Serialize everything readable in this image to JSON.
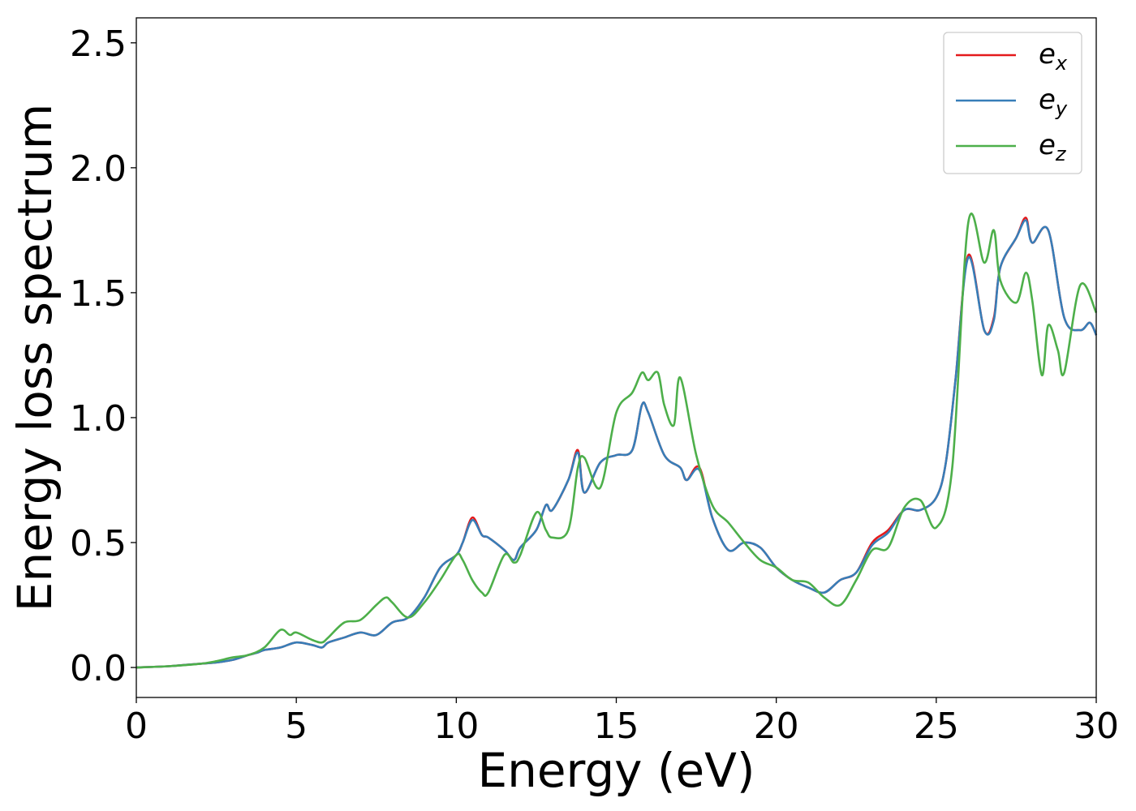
{
  "chart_data": {
    "type": "line",
    "title": "",
    "xlabel": "Energy (eV)",
    "ylabel": "Energy loss spectrum",
    "xlim": [
      0,
      30
    ],
    "ylim": [
      -0.12,
      2.6
    ],
    "xticks": [
      0,
      5,
      10,
      15,
      20,
      25,
      30
    ],
    "xtick_labels": [
      "0",
      "5",
      "10",
      "15",
      "20",
      "25",
      "30"
    ],
    "yticks": [
      0.0,
      0.5,
      1.0,
      1.5,
      2.0,
      2.5
    ],
    "ytick_labels": [
      "0.0",
      "0.5",
      "1.0",
      "1.5",
      "2.0",
      "2.5"
    ],
    "grid": false,
    "legend_position": "top-right",
    "series": [
      {
        "name": "e_x",
        "label_base": "e",
        "label_sub": "x",
        "color": "#e41a1c",
        "x": [
          0,
          1,
          1.5,
          2,
          2.5,
          3,
          3.5,
          3.8,
          4,
          4.5,
          5,
          5.5,
          5.8,
          6,
          6.5,
          7,
          7.5,
          8,
          8.5,
          9,
          9.5,
          10,
          10.2,
          10.5,
          10.8,
          11,
          11.5,
          11.8,
          12,
          12.5,
          12.8,
          13,
          13.5,
          13.8,
          14,
          14.5,
          15,
          15.5,
          15.8,
          16,
          16.5,
          17,
          17.2,
          17.6,
          18,
          18.5,
          19,
          19.5,
          20,
          20.5,
          21,
          21.5,
          22,
          22.5,
          23,
          23.5,
          24,
          24.5,
          25,
          25.3,
          25.6,
          26,
          26.5,
          26.8,
          27,
          27.5,
          27.8,
          28,
          28.5,
          29,
          29.5,
          29.8,
          30
        ],
        "y": [
          0.0,
          0.005,
          0.01,
          0.015,
          0.02,
          0.03,
          0.05,
          0.06,
          0.07,
          0.08,
          0.1,
          0.09,
          0.08,
          0.1,
          0.12,
          0.14,
          0.13,
          0.18,
          0.2,
          0.28,
          0.4,
          0.45,
          0.5,
          0.6,
          0.53,
          0.52,
          0.47,
          0.43,
          0.48,
          0.55,
          0.65,
          0.63,
          0.75,
          0.87,
          0.7,
          0.82,
          0.85,
          0.87,
          1.05,
          1.02,
          0.85,
          0.8,
          0.75,
          0.8,
          0.6,
          0.47,
          0.5,
          0.48,
          0.4,
          0.35,
          0.32,
          0.3,
          0.35,
          0.38,
          0.5,
          0.55,
          0.63,
          0.63,
          0.68,
          0.82,
          1.15,
          1.65,
          1.35,
          1.4,
          1.6,
          1.72,
          1.8,
          1.7,
          1.75,
          1.4,
          1.35,
          1.38,
          1.33
        ]
      },
      {
        "name": "e_y",
        "label_base": "e",
        "label_sub": "y",
        "color": "#377eb8",
        "x": [
          0,
          1,
          1.5,
          2,
          2.5,
          3,
          3.5,
          3.8,
          4,
          4.5,
          5,
          5.5,
          5.8,
          6,
          6.5,
          7,
          7.5,
          8,
          8.5,
          9,
          9.5,
          10,
          10.2,
          10.5,
          10.8,
          11,
          11.5,
          11.8,
          12,
          12.5,
          12.8,
          13,
          13.5,
          13.8,
          14,
          14.5,
          15,
          15.5,
          15.8,
          16,
          16.5,
          17,
          17.2,
          17.6,
          18,
          18.5,
          19,
          19.5,
          20,
          20.5,
          21,
          21.5,
          22,
          22.5,
          23,
          23.5,
          24,
          24.5,
          25,
          25.3,
          25.6,
          26,
          26.5,
          26.8,
          27,
          27.5,
          27.8,
          28,
          28.5,
          29,
          29.5,
          29.8,
          30
        ],
        "y": [
          0.0,
          0.005,
          0.01,
          0.015,
          0.02,
          0.03,
          0.05,
          0.06,
          0.07,
          0.08,
          0.1,
          0.09,
          0.08,
          0.1,
          0.12,
          0.14,
          0.13,
          0.18,
          0.2,
          0.28,
          0.4,
          0.45,
          0.5,
          0.59,
          0.53,
          0.52,
          0.47,
          0.43,
          0.48,
          0.55,
          0.65,
          0.63,
          0.75,
          0.86,
          0.7,
          0.82,
          0.85,
          0.87,
          1.05,
          1.02,
          0.85,
          0.8,
          0.75,
          0.79,
          0.6,
          0.47,
          0.5,
          0.48,
          0.4,
          0.35,
          0.32,
          0.3,
          0.35,
          0.38,
          0.49,
          0.54,
          0.63,
          0.63,
          0.68,
          0.82,
          1.15,
          1.64,
          1.35,
          1.39,
          1.6,
          1.72,
          1.79,
          1.7,
          1.75,
          1.4,
          1.35,
          1.38,
          1.33
        ]
      },
      {
        "name": "e_z",
        "label_base": "e",
        "label_sub": "z",
        "color": "#4daf4a",
        "x": [
          0,
          1,
          2,
          2.5,
          3,
          3.5,
          4,
          4.5,
          4.8,
          5,
          5.5,
          5.8,
          6,
          6.5,
          7,
          7.5,
          7.8,
          8,
          8.5,
          9,
          9.5,
          10,
          10.2,
          10.5,
          10.8,
          11,
          11.5,
          11.8,
          12,
          12.5,
          12.8,
          13,
          13.5,
          13.8,
          14,
          14.5,
          15,
          15.5,
          15.8,
          16,
          16.3,
          16.5,
          16.8,
          17,
          17.5,
          18,
          18.5,
          19,
          19.5,
          20,
          20.5,
          21,
          21.5,
          22,
          22.5,
          23,
          23.5,
          24,
          24.5,
          25,
          25.5,
          26,
          26.5,
          26.8,
          27,
          27.5,
          27.8,
          28,
          28.3,
          28.5,
          28.8,
          29,
          29.5,
          30
        ],
        "y": [
          0.0,
          0.005,
          0.015,
          0.025,
          0.04,
          0.05,
          0.08,
          0.15,
          0.13,
          0.14,
          0.11,
          0.1,
          0.12,
          0.18,
          0.19,
          0.25,
          0.28,
          0.26,
          0.2,
          0.26,
          0.35,
          0.45,
          0.43,
          0.35,
          0.3,
          0.3,
          0.45,
          0.42,
          0.45,
          0.62,
          0.55,
          0.52,
          0.55,
          0.8,
          0.84,
          0.72,
          1.02,
          1.1,
          1.18,
          1.15,
          1.18,
          1.05,
          0.97,
          1.16,
          0.85,
          0.65,
          0.58,
          0.5,
          0.43,
          0.4,
          0.35,
          0.34,
          0.28,
          0.25,
          0.35,
          0.47,
          0.48,
          0.64,
          0.67,
          0.56,
          0.8,
          1.78,
          1.62,
          1.75,
          1.55,
          1.46,
          1.58,
          1.47,
          1.17,
          1.37,
          1.27,
          1.18,
          1.53,
          1.42
        ]
      }
    ]
  }
}
